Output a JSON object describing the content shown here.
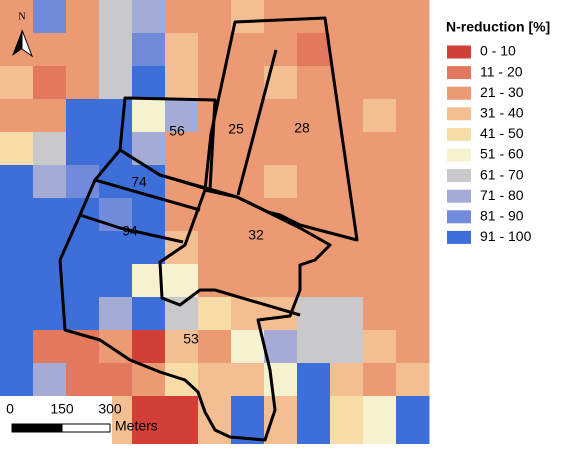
{
  "north": "N",
  "legend": {
    "title": "N-reduction [%]",
    "items": [
      {
        "label": "0 - 10",
        "color": "#d13f37"
      },
      {
        "label": "11 - 20",
        "color": "#e2785d"
      },
      {
        "label": "21 - 30",
        "color": "#eb9a74"
      },
      {
        "label": "31 - 40",
        "color": "#f3bf92"
      },
      {
        "label": "41 - 50",
        "color": "#f8dca8"
      },
      {
        "label": "51 - 60",
        "color": "#f6f1cf"
      },
      {
        "label": "61 - 70",
        "color": "#c9c9cc"
      },
      {
        "label": "71 - 80",
        "color": "#a4acd6"
      },
      {
        "label": "81 - 90",
        "color": "#718ad9"
      },
      {
        "label": "91 - 100",
        "color": "#3e6fd9"
      }
    ]
  },
  "fields": [
    {
      "label": "56"
    },
    {
      "label": "25"
    },
    {
      "label": "28"
    },
    {
      "label": "74"
    },
    {
      "label": "94"
    },
    {
      "label": "32"
    },
    {
      "label": "53"
    }
  ],
  "scale_bar": {
    "ticks": [
      "0",
      "150",
      "300"
    ],
    "unit": "Meters"
  }
}
